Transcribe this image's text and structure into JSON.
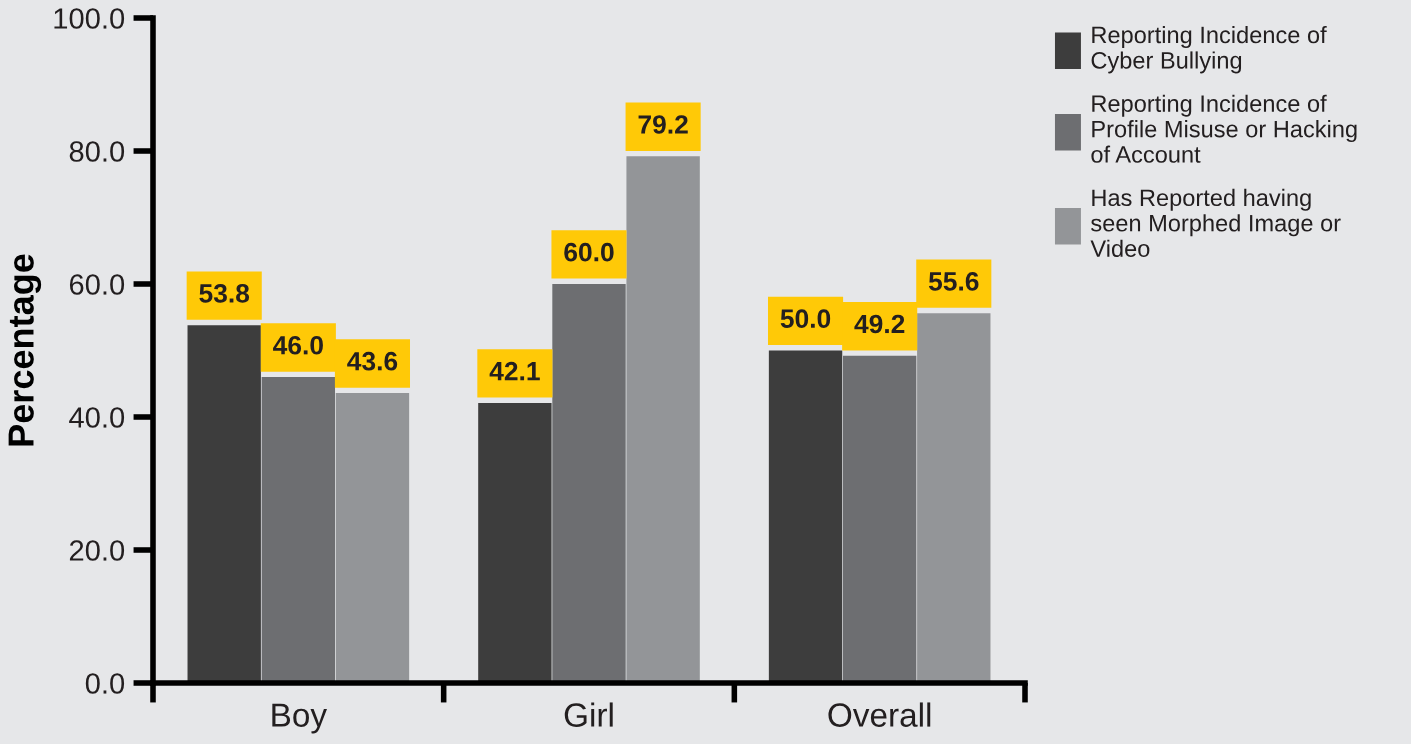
{
  "chart_data": {
    "type": "bar",
    "ylabel": "Percentage",
    "categories": [
      "Boy",
      "Girl",
      "Overall"
    ],
    "series": [
      {
        "name": "Reporting Incidence of\nCyber Bullying",
        "color": "#3d3d3d",
        "values": [
          53.8,
          42.1,
          50.0
        ],
        "value_labels": [
          "53.8",
          "42.1",
          "50.0"
        ]
      },
      {
        "name": "Reporting Incidence of\nProfile Misuse or Hacking\nof Account",
        "color": "#6d6e71",
        "values": [
          46.0,
          60.0,
          49.2
        ],
        "value_labels": [
          "46.0",
          "60.0",
          "49.2"
        ]
      },
      {
        "name": "Has Reported having\nseen Morphed Image or\nVideo",
        "color": "#939598",
        "values": [
          43.6,
          79.2,
          55.6
        ],
        "value_labels": [
          "43.6",
          "79.2",
          "55.6"
        ]
      }
    ],
    "ylim": [
      0,
      100
    ],
    "yticks": [
      {
        "value": 0,
        "label": "0.0"
      },
      {
        "value": 20,
        "label": "20.0"
      },
      {
        "value": 40,
        "label": "40.0"
      },
      {
        "value": 60,
        "label": "60.0"
      },
      {
        "value": 80,
        "label": "80.0"
      },
      {
        "value": 100,
        "label": "100.0"
      }
    ],
    "grid": false,
    "legend": "top right"
  }
}
